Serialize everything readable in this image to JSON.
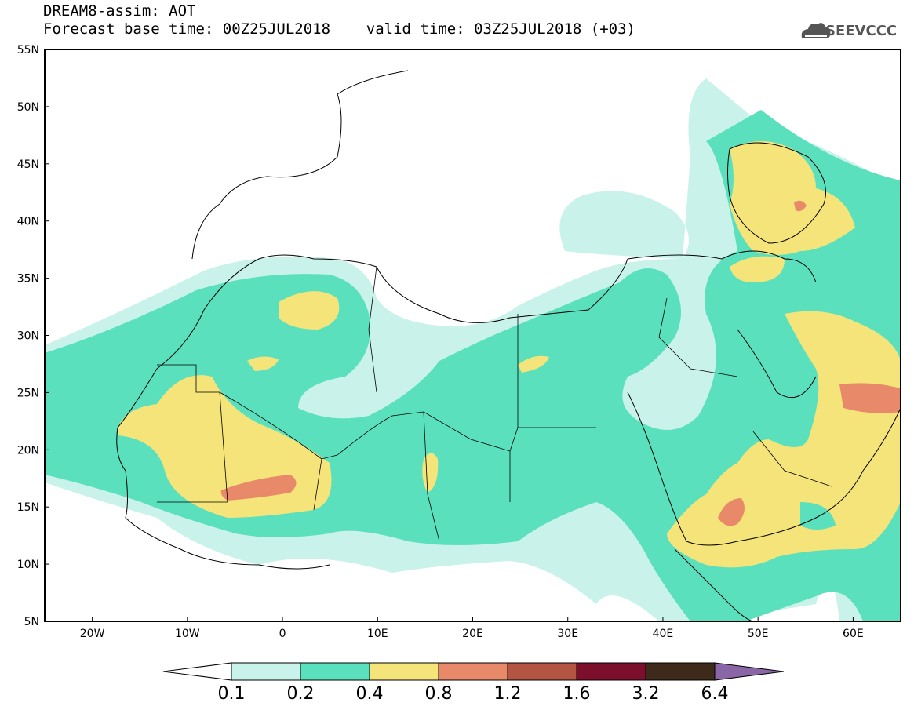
{
  "header": {
    "title_line1": "DREAM8-assim: AOT",
    "title_line2": "Forecast base time: 00Z25JUL2018    valid time: 03Z25JUL2018 (+03)",
    "logo_text": "SEEVCCC"
  },
  "map": {
    "lon_range": [
      -25,
      65
    ],
    "lat_range": [
      5,
      55
    ],
    "lat_labels": [
      "5N",
      "10N",
      "15N",
      "20N",
      "25N",
      "30N",
      "35N",
      "40N",
      "45N",
      "50N",
      "55N"
    ],
    "lon_labels": [
      "20W",
      "10W",
      "0",
      "10E",
      "20E",
      "30E",
      "40E",
      "50E",
      "60E"
    ]
  },
  "colorbar": {
    "labels": [
      "0.1",
      "0.2",
      "0.4",
      "0.8",
      "1.2",
      "1.6",
      "3.2",
      "6.4"
    ],
    "colors": [
      "#c8f2ea",
      "#5ae0bd",
      "#f5e47a",
      "#e8896a",
      "#b45442",
      "#7c0f2c",
      "#3d2a1a",
      "#8a66a6"
    ]
  },
  "colors": {
    "level_01": "#c8f2ea",
    "level_02": "#5ae0bd",
    "level_04": "#f5e47a",
    "level_08": "#e8896a"
  }
}
